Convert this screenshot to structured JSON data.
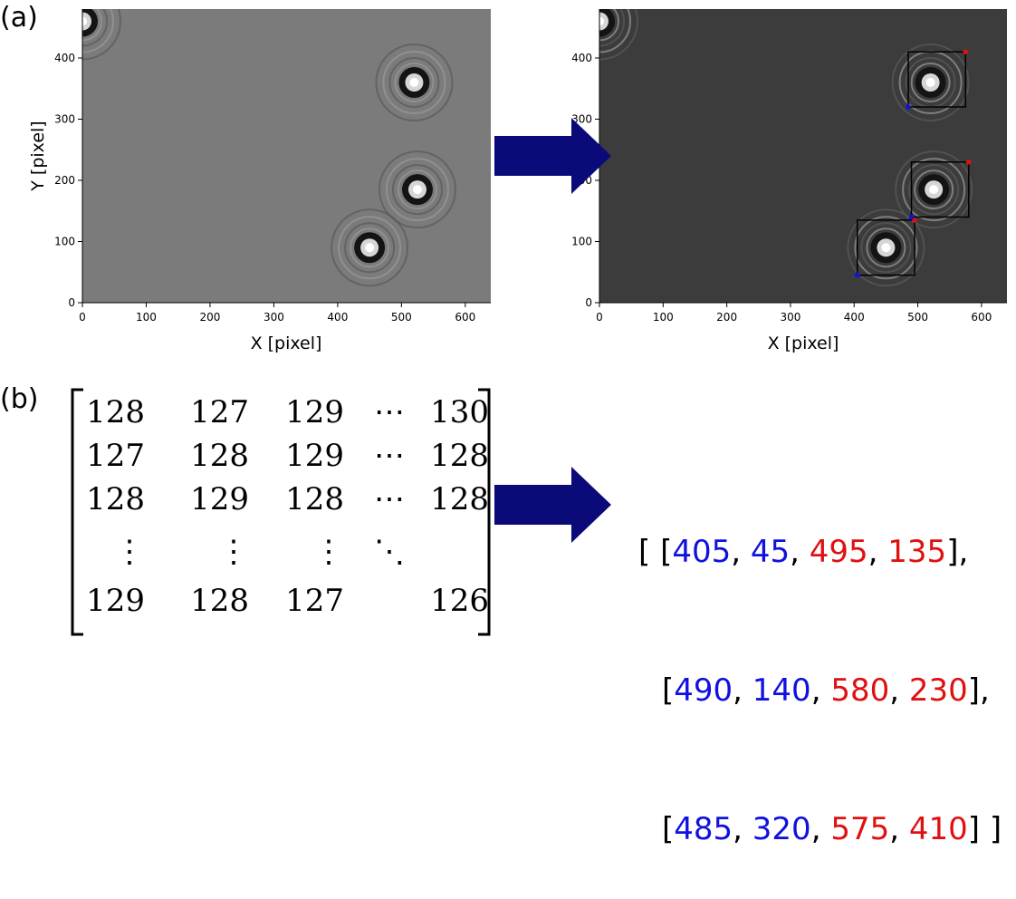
{
  "labels": {
    "a": "(a)",
    "b": "(b)"
  },
  "plot_left": {
    "xlabel": "X [pixel]",
    "ylabel": "Y [pixel]",
    "xticks": [
      "0",
      "100",
      "200",
      "300",
      "400",
      "500",
      "600"
    ],
    "yticks": [
      "0",
      "100",
      "200",
      "300",
      "400"
    ]
  },
  "plot_right": {
    "xlabel": "X [pixel]",
    "xticks": [
      "0",
      "100",
      "200",
      "300",
      "400",
      "500",
      "600"
    ],
    "yticks": [
      "0",
      "100",
      "200",
      "300",
      "400"
    ]
  },
  "chart_data": [
    {
      "type": "scatter",
      "name": "hologram",
      "x_range": [
        0,
        640
      ],
      "y_range": [
        0,
        480
      ],
      "particles": [
        {
          "x": 450,
          "y": 90
        },
        {
          "x": 525,
          "y": 185
        },
        {
          "x": 520,
          "y": 360
        },
        {
          "x": 0,
          "y": 460
        }
      ]
    },
    {
      "type": "scatter",
      "name": "hologram-with-boxes",
      "x_range": [
        0,
        640
      ],
      "y_range": [
        0,
        480
      ],
      "boxes": [
        [
          405,
          45,
          495,
          135
        ],
        [
          490,
          140,
          580,
          230
        ],
        [
          485,
          320,
          575,
          410
        ]
      ]
    }
  ],
  "matrix": {
    "rows": [
      [
        "128",
        "127",
        "129",
        "⋯",
        "130"
      ],
      [
        "127",
        "128",
        "129",
        "⋯",
        "128"
      ],
      [
        "128",
        "129",
        "128",
        "⋯",
        "128"
      ],
      [
        "⋮",
        "⋮",
        "⋮",
        "⋱",
        ""
      ],
      [
        "129",
        "128",
        "127",
        "",
        "126"
      ]
    ]
  },
  "boxes_text": {
    "open": "[ [",
    "r1": [
      "405",
      ", ",
      "45",
      ", ",
      "495",
      ", ",
      "135"
    ],
    "close1": "],",
    "open2": "[",
    "r2": [
      "490",
      ", ",
      "140",
      ", ",
      "580",
      ", ",
      "230"
    ],
    "close2": "],",
    "open3": "[",
    "r3": [
      "485",
      ", ",
      "320",
      ", ",
      "575",
      ", ",
      "410"
    ],
    "close3": "] ]"
  },
  "colors": {
    "arrow": "#0a0a78",
    "blue": "#1010e0",
    "red": "#e01010"
  }
}
